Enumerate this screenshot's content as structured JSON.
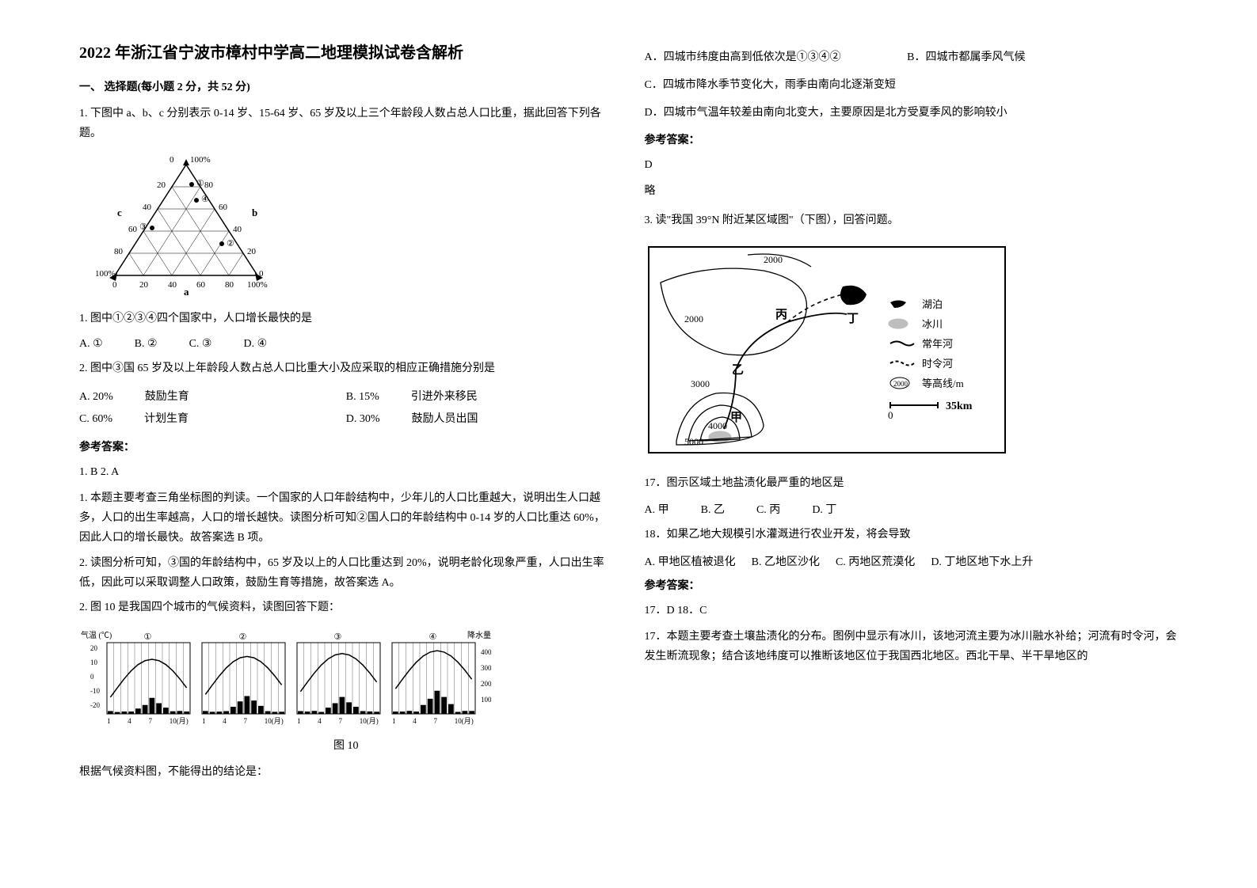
{
  "title": "2022 年浙江省宁波市樟村中学高二地理模拟试卷含解析",
  "section1": "一、 选择题(每小题 2 分，共 52 分)",
  "q1": {
    "stem": "1. 下图中 a、b、c 分别表示 0-14 岁、15-64 岁、65 岁及以上三个年龄段人数占总人口比重，据此回答下列各题。",
    "triangle": {
      "labels_a": [
        "0",
        "20",
        "40",
        "60",
        "80",
        "100%"
      ],
      "labels_b": [
        "100%",
        "80",
        "60",
        "40",
        "20",
        "0"
      ],
      "labels_c": [
        "100%",
        "80",
        "60",
        "40",
        "20",
        "0"
      ],
      "side_labels": {
        "a": "a",
        "b": "b",
        "c": "c"
      },
      "points": [
        "①",
        "②",
        "③",
        "④"
      ]
    },
    "sub1": {
      "text": "1. 图中①②③④四个国家中，人口增长最快的是",
      "opts": [
        "A. ①",
        "B. ②",
        "C. ③",
        "D. ④"
      ]
    },
    "sub2": {
      "text": "2. 图中③国 65 岁及以上年龄段人数占总人口比重大小及应采取的相应正确措施分别是",
      "opts": [
        {
          "k": "A. 20%",
          "v": "鼓励生育"
        },
        {
          "k": "B. 15%",
          "v": "引进外来移民"
        },
        {
          "k": "C. 60%",
          "v": "计划生育"
        },
        {
          "k": "D. 30%",
          "v": "鼓励人员出国"
        }
      ]
    },
    "ans_header": "参考答案：",
    "ans_line": "1. B    2. A",
    "exp1": "1. 本题主要考查三角坐标图的判读。一个国家的人口年龄结构中，少年儿的人口比重越大，说明出生人口越多，人口的出生率越高，人口的增长越快。读图分析可知②国人口的年龄结构中 0-14 岁的人口比重达 60%，因此人口的增长最快。故答案选 B 项。",
    "exp2": "2. 读图分析可知，③国的年龄结构中，65 岁及以上的人口比重达到 20%，说明老龄化现象严重，人口出生率低，因此可以采取调整人口政策，鼓励生育等措施，故答案选 A。"
  },
  "q2": {
    "stem": "2. 图 10 是我国四个城市的气候资料，读图回答下题：",
    "figure_label": "图 10",
    "y_left_label": "气温\n(℃)",
    "y_right_label": "降水量\n(mm)",
    "temp_ticks": [
      "20",
      "10",
      "0",
      "-10",
      "-20"
    ],
    "precip_ticks": [
      "400",
      "300",
      "200",
      "100"
    ],
    "month_ticks": [
      "1",
      "4",
      "7",
      "10(月)"
    ],
    "city_ids": [
      "①",
      "②",
      "③",
      "④"
    ],
    "footer": "根据气候资料图，不能得出的结论是：",
    "opts": {
      "A": "A．四城市纬度由高到低依次是①③④②",
      "B": "B．四城市都属季风气候",
      "C": "C．四城市降水季节变化大，雨季由南向北逐渐变短",
      "D": "D．四城市气温年较差由南向北变大，主要原因是北方受夏季风的影响较小"
    },
    "ans_header": "参考答案：",
    "ans": "D",
    "ans_note": "略"
  },
  "q3": {
    "stem": "3. 读\"我国 39°N 附近某区域图\"（下图），回答问题。",
    "legend": {
      "lake": "湖泊",
      "glacier": "冰川",
      "perennial": "常年河",
      "seasonal": "时令河",
      "contour": "等高线/m",
      "scale": "35km",
      "scale_0": "0"
    },
    "map_labels": [
      "甲",
      "乙",
      "丙",
      "丁"
    ],
    "contours": [
      "2000",
      "2000",
      "3000",
      "4000",
      "5000"
    ],
    "sub17": {
      "text": "17．图示区域土地盐渍化最严重的地区是",
      "opts": [
        "A. 甲",
        "B. 乙",
        "C. 丙",
        "D. 丁"
      ]
    },
    "sub18": {
      "text": "18．如果乙地大规模引水灌溉进行农业开发，将会导致",
      "opts": [
        "A. 甲地区植被退化",
        "B. 乙地区沙化",
        "C. 丙地区荒漠化",
        "D. 丁地区地下水上升"
      ]
    },
    "ans_header": "参考答案：",
    "ans": "17．D   18．C",
    "exp": "17．本题主要考查土壤盐渍化的分布。图例中显示有冰川，该地河流主要为冰川融水补给；河流有时令河，会发生断流现象；结合该地纬度可以推断该地区位于我国西北地区。西北干旱、半干旱地区的"
  }
}
